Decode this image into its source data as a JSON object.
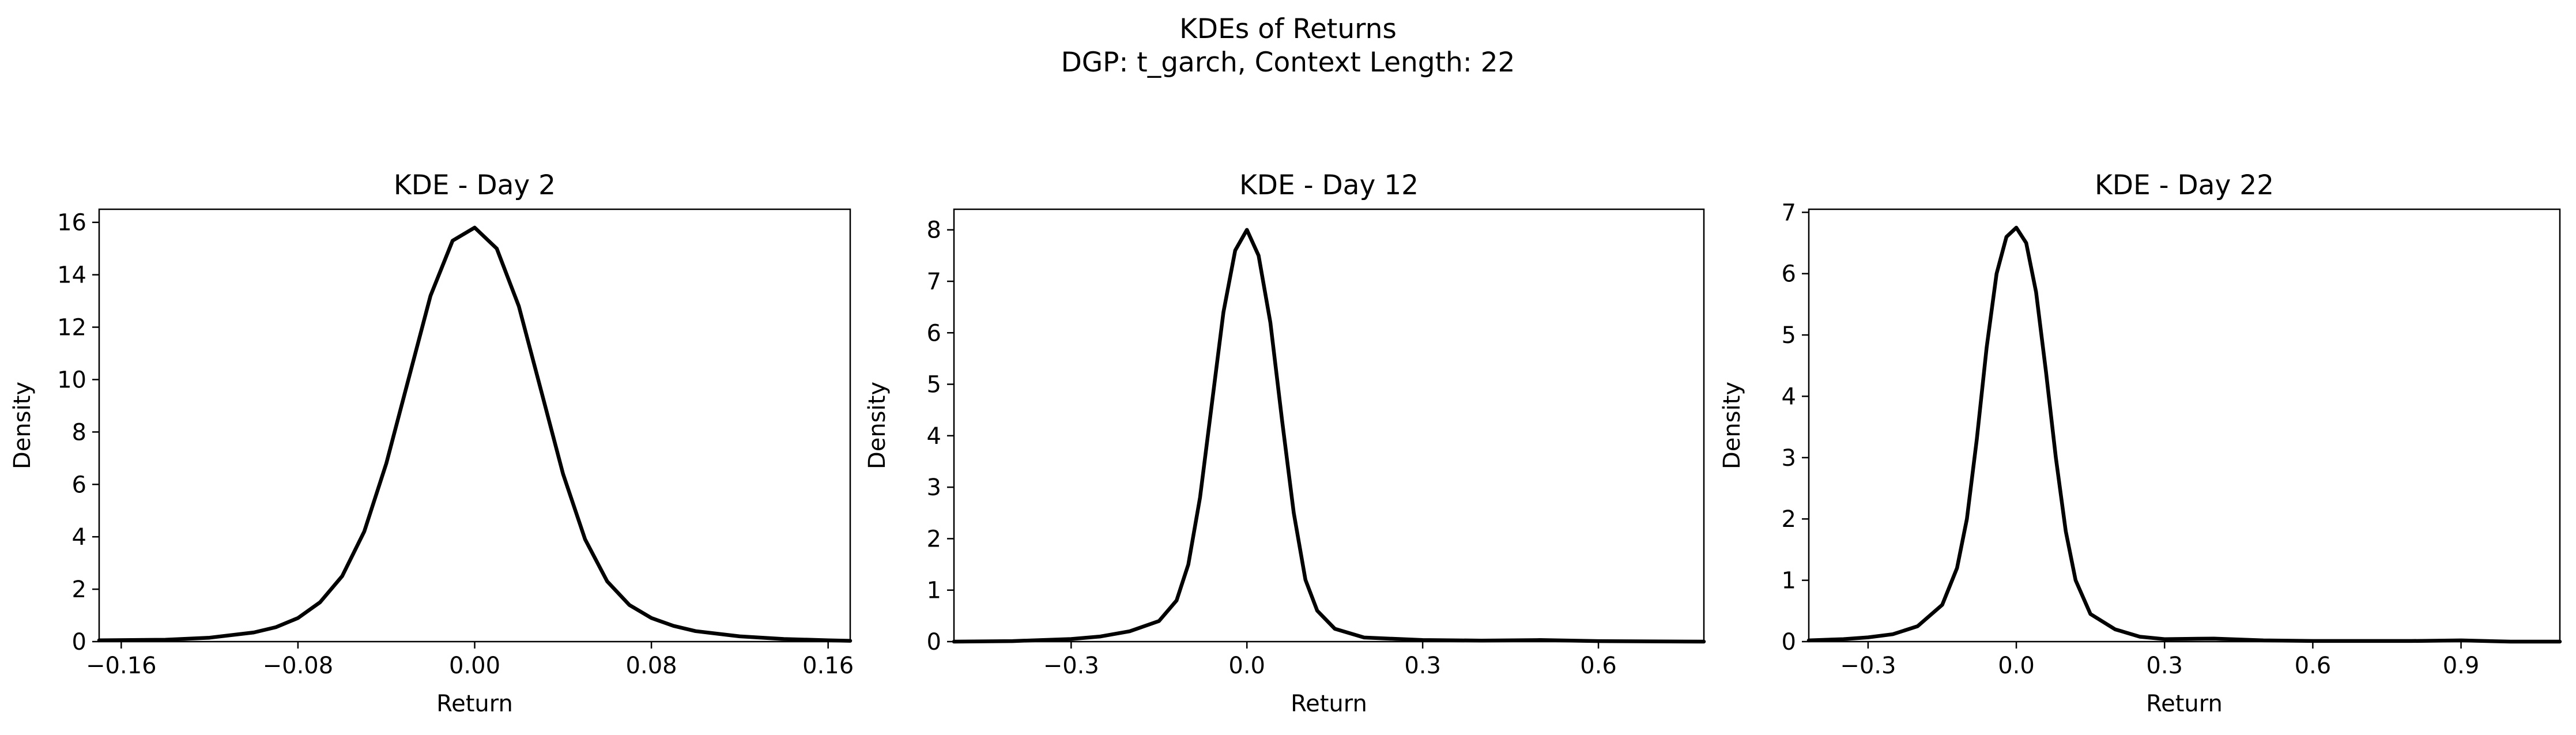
{
  "figure": {
    "title_line1": "KDEs of Returns",
    "title_line2": "DGP: t_garch, Context Length: 22"
  },
  "chart_data": [
    {
      "type": "line",
      "title": "KDE - Day 2",
      "xlabel": "Return",
      "ylabel": "Density",
      "xlim": [
        -0.17,
        0.17
      ],
      "ylim": [
        0,
        16.5
      ],
      "xticks": [
        -0.16,
        -0.08,
        0.0,
        0.08,
        0.16
      ],
      "xtick_labels": [
        "−0.16",
        "−0.08",
        "0.00",
        "0.08",
        "0.16"
      ],
      "yticks": [
        0,
        2,
        4,
        6,
        8,
        10,
        12,
        14,
        16
      ],
      "ytick_labels": [
        "0",
        "2",
        "4",
        "6",
        "8",
        "10",
        "12",
        "14",
        "16"
      ],
      "series": [
        {
          "color": "#000000",
          "x": [
            -0.17,
            -0.14,
            -0.12,
            -0.1,
            -0.09,
            -0.08,
            -0.07,
            -0.06,
            -0.05,
            -0.04,
            -0.03,
            -0.02,
            -0.01,
            0.0,
            0.01,
            0.02,
            0.03,
            0.04,
            0.05,
            0.06,
            0.07,
            0.08,
            0.09,
            0.1,
            0.12,
            0.14,
            0.16,
            0.17
          ],
          "y": [
            0.05,
            0.07,
            0.15,
            0.35,
            0.55,
            0.9,
            1.5,
            2.5,
            4.2,
            6.8,
            10.0,
            13.2,
            15.3,
            15.8,
            15.0,
            12.8,
            9.6,
            6.4,
            3.9,
            2.3,
            1.4,
            0.9,
            0.6,
            0.4,
            0.2,
            0.1,
            0.05,
            0.03
          ]
        }
      ]
    },
    {
      "type": "line",
      "title": "KDE - Day 12",
      "xlabel": "Return",
      "ylabel": "Density",
      "xlim": [
        -0.5,
        0.78
      ],
      "ylim": [
        0,
        8.4
      ],
      "xticks": [
        -0.3,
        0.0,
        0.3,
        0.6
      ],
      "xtick_labels": [
        "−0.3",
        "0.0",
        "0.3",
        "0.6"
      ],
      "yticks": [
        0,
        1,
        2,
        3,
        4,
        5,
        6,
        7,
        8
      ],
      "ytick_labels": [
        "0",
        "1",
        "2",
        "3",
        "4",
        "5",
        "6",
        "7",
        "8"
      ],
      "series": [
        {
          "color": "#000000",
          "x": [
            -0.5,
            -0.4,
            -0.3,
            -0.25,
            -0.2,
            -0.15,
            -0.12,
            -0.1,
            -0.08,
            -0.06,
            -0.04,
            -0.02,
            0.0,
            0.02,
            0.04,
            0.06,
            0.08,
            0.1,
            0.12,
            0.15,
            0.2,
            0.3,
            0.4,
            0.5,
            0.6,
            0.78
          ],
          "y": [
            0.0,
            0.01,
            0.05,
            0.1,
            0.2,
            0.4,
            0.8,
            1.5,
            2.8,
            4.6,
            6.4,
            7.6,
            8.0,
            7.5,
            6.2,
            4.3,
            2.5,
            1.2,
            0.6,
            0.25,
            0.08,
            0.03,
            0.02,
            0.03,
            0.01,
            0.0
          ]
        }
      ]
    },
    {
      "type": "line",
      "title": "KDE - Day 22",
      "xlabel": "Return",
      "ylabel": "Density",
      "xlim": [
        -0.42,
        1.1
      ],
      "ylim": [
        0,
        7.05
      ],
      "xticks": [
        -0.3,
        0.0,
        0.3,
        0.6,
        0.9
      ],
      "xtick_labels": [
        "−0.3",
        "0.0",
        "0.3",
        "0.6",
        "0.9"
      ],
      "yticks": [
        0,
        1,
        2,
        3,
        4,
        5,
        6,
        7
      ],
      "ytick_labels": [
        "0",
        "1",
        "2",
        "3",
        "4",
        "5",
        "6",
        "7"
      ],
      "series": [
        {
          "color": "#000000",
          "x": [
            -0.42,
            -0.35,
            -0.3,
            -0.25,
            -0.2,
            -0.15,
            -0.12,
            -0.1,
            -0.08,
            -0.06,
            -0.04,
            -0.02,
            0.0,
            0.02,
            0.04,
            0.06,
            0.08,
            0.1,
            0.12,
            0.15,
            0.2,
            0.25,
            0.3,
            0.4,
            0.5,
            0.6,
            0.8,
            0.9,
            1.0,
            1.1
          ],
          "y": [
            0.02,
            0.04,
            0.07,
            0.12,
            0.25,
            0.6,
            1.2,
            2.0,
            3.3,
            4.8,
            6.0,
            6.6,
            6.75,
            6.5,
            5.7,
            4.4,
            3.0,
            1.8,
            1.0,
            0.45,
            0.2,
            0.08,
            0.04,
            0.05,
            0.02,
            0.01,
            0.01,
            0.02,
            0.0,
            0.0
          ]
        }
      ]
    }
  ]
}
